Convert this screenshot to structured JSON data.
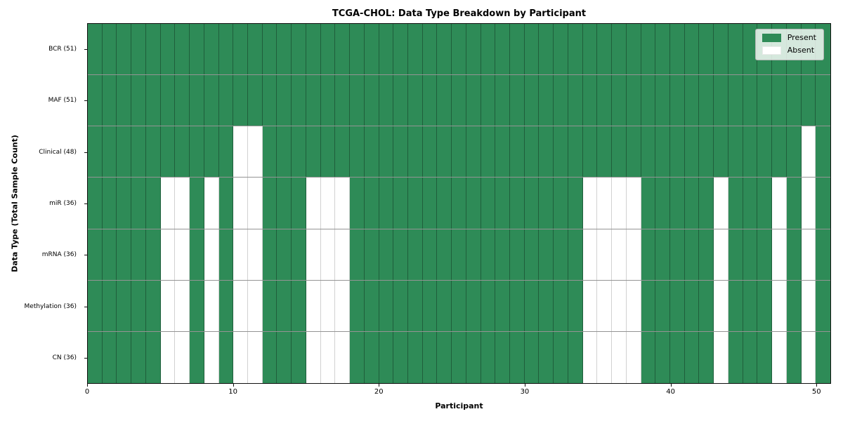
{
  "chart_data": {
    "type": "heatmap",
    "title": "TCGA-CHOL: Data Type Breakdown by Participant",
    "xlabel": "Participant",
    "ylabel": "Data Type (Total Sample Count)",
    "n_participants": 51,
    "x_ticks": [
      0,
      10,
      20,
      30,
      40,
      50
    ],
    "present_color": "#2e8b57",
    "absent_color": "#ffffff",
    "grid_on": true,
    "legend_position": "upper right",
    "rows": [
      {
        "label": "BCR (51)",
        "total_samples": 51,
        "absent_participants": []
      },
      {
        "label": "MAF (51)",
        "total_samples": 51,
        "absent_participants": []
      },
      {
        "label": "Clinical (48)",
        "total_samples": 48,
        "absent_participants": [
          10,
          11,
          49
        ]
      },
      {
        "label": "miR (36)",
        "total_samples": 36,
        "absent_participants": [
          5,
          6,
          8,
          10,
          11,
          15,
          16,
          17,
          34,
          35,
          36,
          37,
          43,
          47,
          49
        ]
      },
      {
        "label": "mRNA (36)",
        "total_samples": 36,
        "absent_participants": [
          5,
          6,
          8,
          10,
          11,
          15,
          16,
          17,
          34,
          35,
          36,
          37,
          43,
          47,
          49
        ]
      },
      {
        "label": "Methylation (36)",
        "total_samples": 36,
        "absent_participants": [
          5,
          6,
          8,
          10,
          11,
          15,
          16,
          17,
          34,
          35,
          36,
          37,
          43,
          47,
          49
        ]
      },
      {
        "label": "CN (36)",
        "total_samples": 36,
        "absent_participants": [
          5,
          6,
          8,
          10,
          11,
          15,
          16,
          17,
          34,
          35,
          36,
          37,
          43,
          47,
          49
        ]
      }
    ],
    "legend": [
      {
        "label": "Present",
        "color": "#2e8b57"
      },
      {
        "label": "Absent",
        "color": "#ffffff"
      }
    ]
  }
}
